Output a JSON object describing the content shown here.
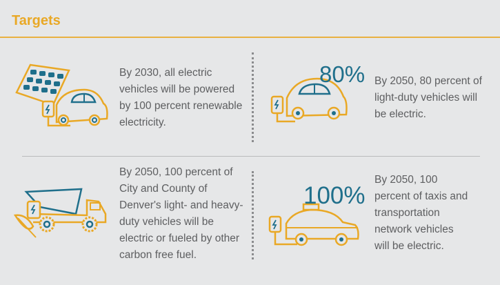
{
  "header": {
    "title": "Targets"
  },
  "targets": [
    {
      "text": "By 2030, all electric vehicles will be powered by 100 percent renewable electricity.",
      "icon": "solar-panel-car-icon"
    },
    {
      "percent": "80%",
      "text": "By 2050, 80 percent of light-duty vehicles will be electric.",
      "icon": "electric-car-icon"
    },
    {
      "text": "By 2050, 100 percent of City and County of Denver's light- and heavy-duty vehicles will be electric or fueled by other carbon free fuel.",
      "icon": "dump-truck-leaf-icon"
    },
    {
      "percent": "100%",
      "text": "By 2050, 100 percent of taxis and transportation network vehicles will be electric.",
      "icon": "electric-taxi-icon"
    }
  ],
  "colors": {
    "accent": "#e9a825",
    "teal": "#1f6f8b",
    "background": "#e6e7e8",
    "text": "#5d5e60"
  }
}
